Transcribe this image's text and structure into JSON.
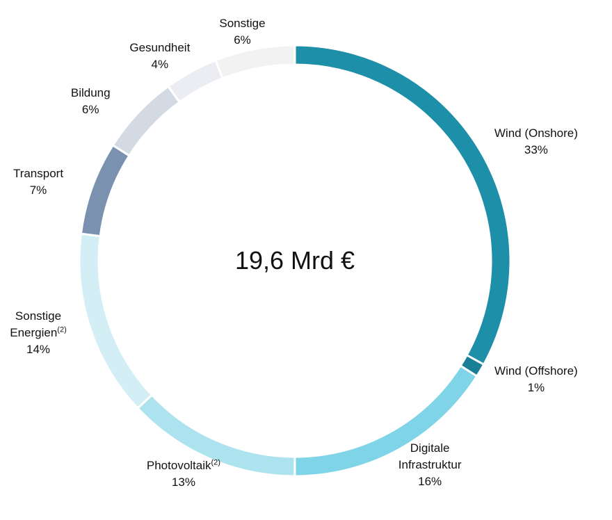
{
  "chart_data": {
    "type": "donut",
    "center_label": "19,6 Mrd €",
    "categories": [
      "Wind (Onshore)",
      "Wind (Offshore)",
      "Digitale Infrastruktur",
      "Photovoltaik",
      "Sonstige Energien",
      "Transport",
      "Bildung",
      "Gesundheit",
      "Sonstige"
    ],
    "superscripts": [
      null,
      null,
      null,
      "(2)",
      "(2)",
      null,
      null,
      null,
      null
    ],
    "values": [
      33,
      1,
      16,
      13,
      14,
      7,
      6,
      4,
      6
    ],
    "value_labels": [
      "33%",
      "1%",
      "16%",
      "13%",
      "14%",
      "7%",
      "6%",
      "4%",
      "6%"
    ],
    "colors": [
      "#1e8fa8",
      "#187f97",
      "#7fd4e8",
      "#ade3ef",
      "#d3eff5",
      "#7a92af",
      "#d3dae4",
      "#ebedf2",
      "#f2f2f2"
    ]
  }
}
